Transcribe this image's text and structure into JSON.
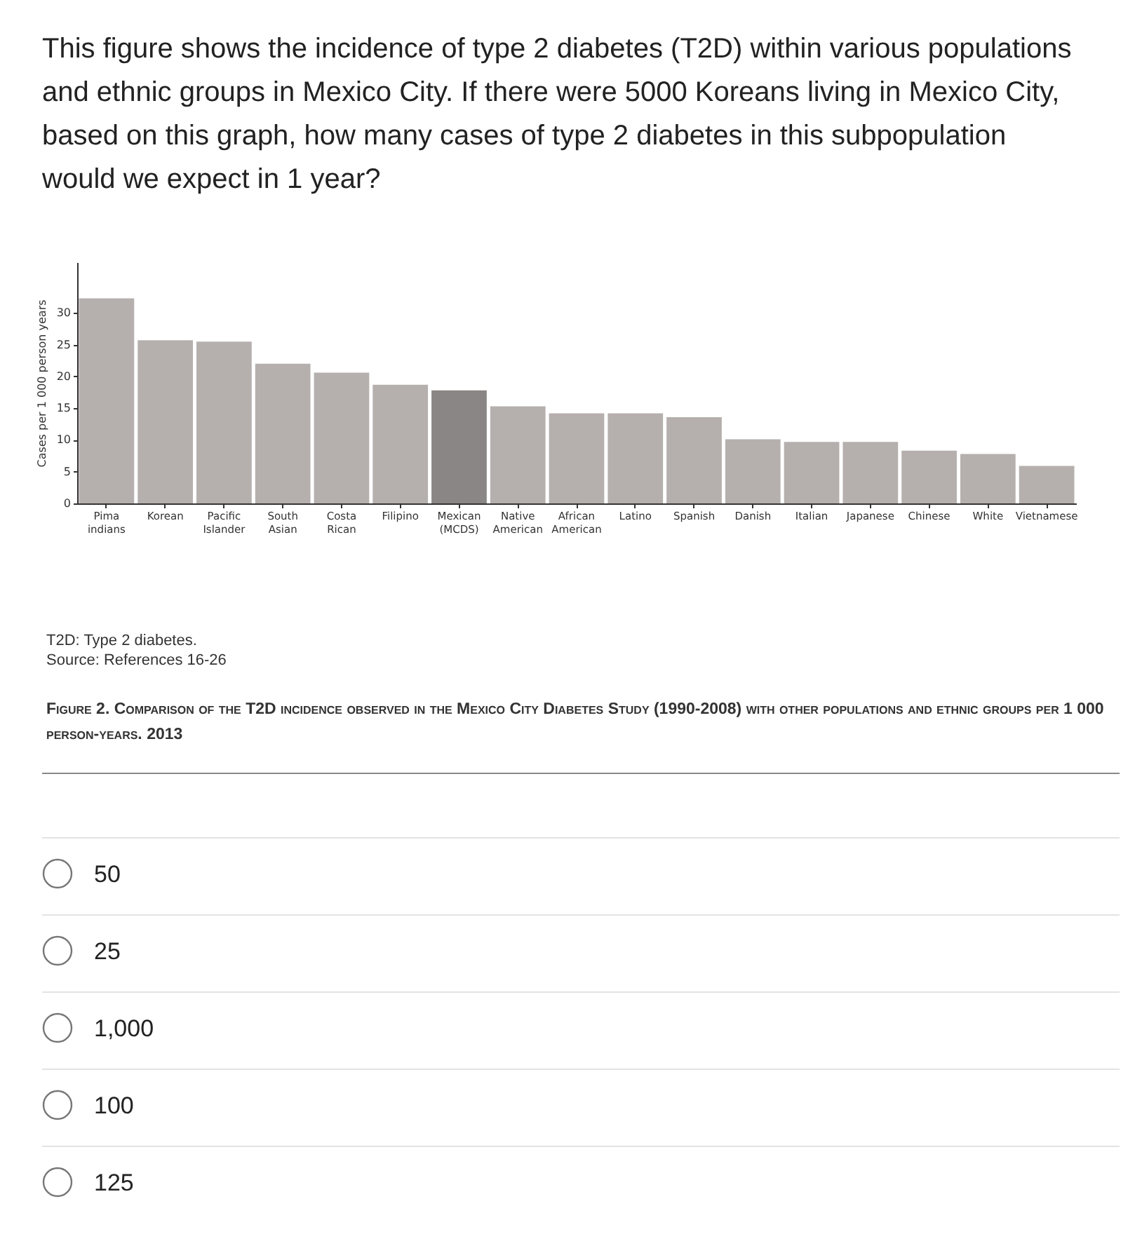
{
  "chart_data": {
    "type": "bar",
    "title": "This figure shows the incidence of type 2 diabetes (T2D) within various populations and ethnic groups in Mexico City.  If there were 5000 Koreans living in Mexico City, based on this graph, how many cases of type 2 diabetes in this subpopulation would we expect in 1 year?",
    "ylabel": "Cases per 1 000 person years",
    "categories": [
      "Pima indians",
      "Korean",
      "Pacific Islander",
      "South Asian",
      "Costa Rican",
      "Filipino",
      "Mexican (MCDS)",
      "Native American",
      "African American",
      "Latino",
      "Spanish",
      "Danish",
      "Italian",
      "Japanese",
      "Chinese",
      "White",
      "Vietnamese"
    ],
    "values": [
      32.3,
      25.7,
      25.5,
      22,
      20.6,
      18.7,
      17.8,
      15.3,
      14.2,
      14.2,
      13.6,
      10.1,
      9.7,
      9.7,
      8.3,
      7.8,
      5.9
    ],
    "colors": [
      "#b5b0ae",
      "#b5b0ae",
      "#b5b0ae",
      "#b5b0ae",
      "#b5b0ae",
      "#b5b0ae",
      "#8a8685",
      "#b5b0ae",
      "#b5b0ae",
      "#b5b0ae",
      "#b5b0ae",
      "#b5b0ae",
      "#b5b0ae",
      "#b5b0ae",
      "#b5b0ae",
      "#b5b0ae",
      "#b5b0ae"
    ],
    "ylim": [
      0,
      38
    ],
    "yticks": [
      0,
      5,
      10,
      15,
      20,
      25,
      30
    ],
    "grid": false,
    "annotations": [
      "T2D: Type 2 diabetes.",
      "Source: References 16-26",
      "Figure 2.  Comparison of the T2D incidence observed in the Mexico City Diabetes Study (1990-2008) with other populations and ethnic groups per 1 000 person-years. 2013",
      "50",
      "25",
      "1,000",
      "100",
      "125"
    ]
  }
}
